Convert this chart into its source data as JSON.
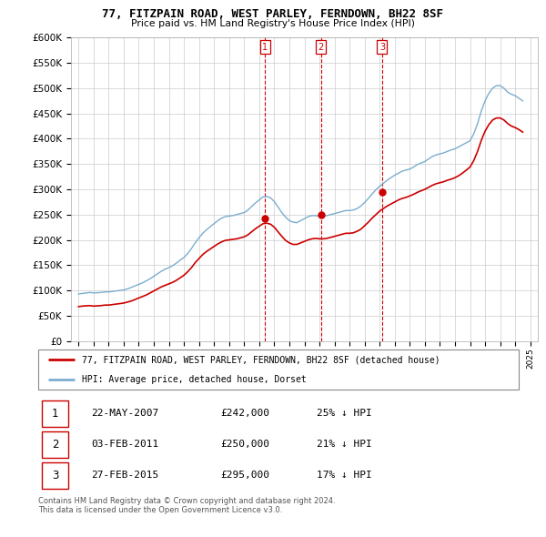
{
  "title": "77, FITZPAIN ROAD, WEST PARLEY, FERNDOWN, BH22 8SF",
  "subtitle": "Price paid vs. HM Land Registry's House Price Index (HPI)",
  "hpi_label": "HPI: Average price, detached house, Dorset",
  "property_label": "77, FITZPAIN ROAD, WEST PARLEY, FERNDOWN, BH22 8SF (detached house)",
  "red_color": "#cc0000",
  "blue_color": "#7aadcf",
  "background_color": "#ffffff",
  "grid_color": "#cccccc",
  "transactions": [
    {
      "num": 1,
      "date_str": "22-MAY-2007",
      "year": 2007.38,
      "price": 242000,
      "pct": "25% ↓ HPI"
    },
    {
      "num": 2,
      "date_str": "03-FEB-2011",
      "year": 2011.09,
      "price": 250000,
      "pct": "21% ↓ HPI"
    },
    {
      "num": 3,
      "date_str": "27-FEB-2015",
      "year": 2015.16,
      "price": 295000,
      "pct": "17% ↓ HPI"
    }
  ],
  "ylim": [
    0,
    600000
  ],
  "yticks": [
    0,
    50000,
    100000,
    150000,
    200000,
    250000,
    300000,
    350000,
    400000,
    450000,
    500000,
    550000,
    600000
  ],
  "xlim_start": 1994.5,
  "xlim_end": 2025.5,
  "footer_line1": "Contains HM Land Registry data © Crown copyright and database right 2024.",
  "footer_line2": "This data is licensed under the Open Government Licence v3.0.",
  "hpi_years": [
    1995,
    1995.25,
    1995.5,
    1995.75,
    1996,
    1996.25,
    1996.5,
    1996.75,
    1997,
    1997.25,
    1997.5,
    1997.75,
    1998,
    1998.25,
    1998.5,
    1998.75,
    1999,
    1999.25,
    1999.5,
    1999.75,
    2000,
    2000.25,
    2000.5,
    2000.75,
    2001,
    2001.25,
    2001.5,
    2001.75,
    2002,
    2002.25,
    2002.5,
    2002.75,
    2003,
    2003.25,
    2003.5,
    2003.75,
    2004,
    2004.25,
    2004.5,
    2004.75,
    2005,
    2005.25,
    2005.5,
    2005.75,
    2006,
    2006.25,
    2006.5,
    2006.75,
    2007,
    2007.25,
    2007.5,
    2007.75,
    2008,
    2008.25,
    2008.5,
    2008.75,
    2009,
    2009.25,
    2009.5,
    2009.75,
    2010,
    2010.25,
    2010.5,
    2010.75,
    2011,
    2011.25,
    2011.5,
    2011.75,
    2012,
    2012.25,
    2012.5,
    2012.75,
    2013,
    2013.25,
    2013.5,
    2013.75,
    2014,
    2014.25,
    2014.5,
    2014.75,
    2015,
    2015.25,
    2015.5,
    2015.75,
    2016,
    2016.25,
    2016.5,
    2016.75,
    2017,
    2017.25,
    2017.5,
    2017.75,
    2018,
    2018.25,
    2018.5,
    2018.75,
    2019,
    2019.25,
    2019.5,
    2019.75,
    2020,
    2020.25,
    2020.5,
    2020.75,
    2021,
    2021.25,
    2021.5,
    2021.75,
    2022,
    2022.25,
    2022.5,
    2022.75,
    2023,
    2023.25,
    2023.5,
    2023.75,
    2024,
    2024.25,
    2024.5
  ],
  "hpi_values": [
    93000,
    94000,
    95000,
    96000,
    95000,
    95500,
    96000,
    97000,
    97000,
    98000,
    99000,
    100000,
    101000,
    103000,
    106000,
    109000,
    112000,
    115000,
    119000,
    123000,
    128000,
    133000,
    138000,
    142000,
    145000,
    149000,
    154000,
    160000,
    165000,
    173000,
    183000,
    194000,
    204000,
    213000,
    220000,
    226000,
    232000,
    238000,
    243000,
    246000,
    247000,
    248000,
    250000,
    252000,
    254000,
    259000,
    266000,
    273000,
    279000,
    285000,
    286000,
    283000,
    276000,
    265000,
    254000,
    245000,
    238000,
    235000,
    234000,
    238000,
    242000,
    246000,
    248000,
    248000,
    247000,
    247000,
    248000,
    250000,
    252000,
    254000,
    256000,
    258000,
    258000,
    259000,
    262000,
    267000,
    274000,
    282000,
    291000,
    299000,
    306000,
    312000,
    318000,
    323000,
    328000,
    332000,
    336000,
    338000,
    340000,
    344000,
    349000,
    352000,
    355000,
    360000,
    365000,
    368000,
    370000,
    372000,
    375000,
    378000,
    380000,
    384000,
    388000,
    392000,
    396000,
    410000,
    430000,
    455000,
    475000,
    490000,
    500000,
    505000,
    505000,
    500000,
    492000,
    488000,
    485000,
    480000,
    475000
  ],
  "red_years": [
    1995,
    1995.25,
    1995.5,
    1995.75,
    1996,
    1996.25,
    1996.5,
    1996.75,
    1997,
    1997.25,
    1997.5,
    1997.75,
    1998,
    1998.25,
    1998.5,
    1998.75,
    1999,
    1999.25,
    1999.5,
    1999.75,
    2000,
    2000.25,
    2000.5,
    2000.75,
    2001,
    2001.25,
    2001.5,
    2001.75,
    2002,
    2002.25,
    2002.5,
    2002.75,
    2003,
    2003.25,
    2003.5,
    2003.75,
    2004,
    2004.25,
    2004.5,
    2004.75,
    2005,
    2005.25,
    2005.5,
    2005.75,
    2006,
    2006.25,
    2006.5,
    2006.75,
    2007,
    2007.25,
    2007.5,
    2007.75,
    2008,
    2008.25,
    2008.5,
    2008.75,
    2009,
    2009.25,
    2009.5,
    2009.75,
    2010,
    2010.25,
    2010.5,
    2010.75,
    2011,
    2011.25,
    2011.5,
    2011.75,
    2012,
    2012.25,
    2012.5,
    2012.75,
    2013,
    2013.25,
    2013.5,
    2013.75,
    2014,
    2014.25,
    2014.5,
    2014.75,
    2015,
    2015.25,
    2015.5,
    2015.75,
    2016,
    2016.25,
    2016.5,
    2016.75,
    2017,
    2017.25,
    2017.5,
    2017.75,
    2018,
    2018.25,
    2018.5,
    2018.75,
    2019,
    2019.25,
    2019.5,
    2019.75,
    2020,
    2020.25,
    2020.5,
    2020.75,
    2021,
    2021.25,
    2021.5,
    2021.75,
    2022,
    2022.25,
    2022.5,
    2022.75,
    2023,
    2023.25,
    2023.5,
    2023.75,
    2024,
    2024.25,
    2024.5
  ],
  "red_values": [
    68000,
    69000,
    69500,
    70000,
    69000,
    69500,
    70000,
    71000,
    71000,
    72000,
    73000,
    74000,
    75000,
    77000,
    79000,
    82000,
    85000,
    88000,
    91000,
    95000,
    99000,
    103000,
    107000,
    110000,
    113000,
    116000,
    120000,
    125000,
    130000,
    137000,
    145000,
    155000,
    163000,
    171000,
    177000,
    182000,
    187000,
    192000,
    196000,
    199000,
    200000,
    201000,
    202000,
    204000,
    206000,
    210000,
    216000,
    222000,
    227000,
    232000,
    233000,
    231000,
    225000,
    216000,
    207000,
    199000,
    194000,
    191000,
    191000,
    194000,
    197000,
    200000,
    202000,
    203000,
    202000,
    202000,
    203000,
    205000,
    207000,
    209000,
    211000,
    213000,
    213000,
    214000,
    217000,
    221000,
    228000,
    235000,
    243000,
    250000,
    257000,
    262000,
    267000,
    271000,
    275000,
    279000,
    282000,
    284000,
    287000,
    290000,
    294000,
    297000,
    300000,
    304000,
    308000,
    311000,
    313000,
    315000,
    318000,
    320000,
    323000,
    327000,
    332000,
    338000,
    344000,
    357000,
    375000,
    397000,
    415000,
    428000,
    437000,
    441000,
    441000,
    437000,
    430000,
    425000,
    422000,
    418000,
    413000
  ]
}
